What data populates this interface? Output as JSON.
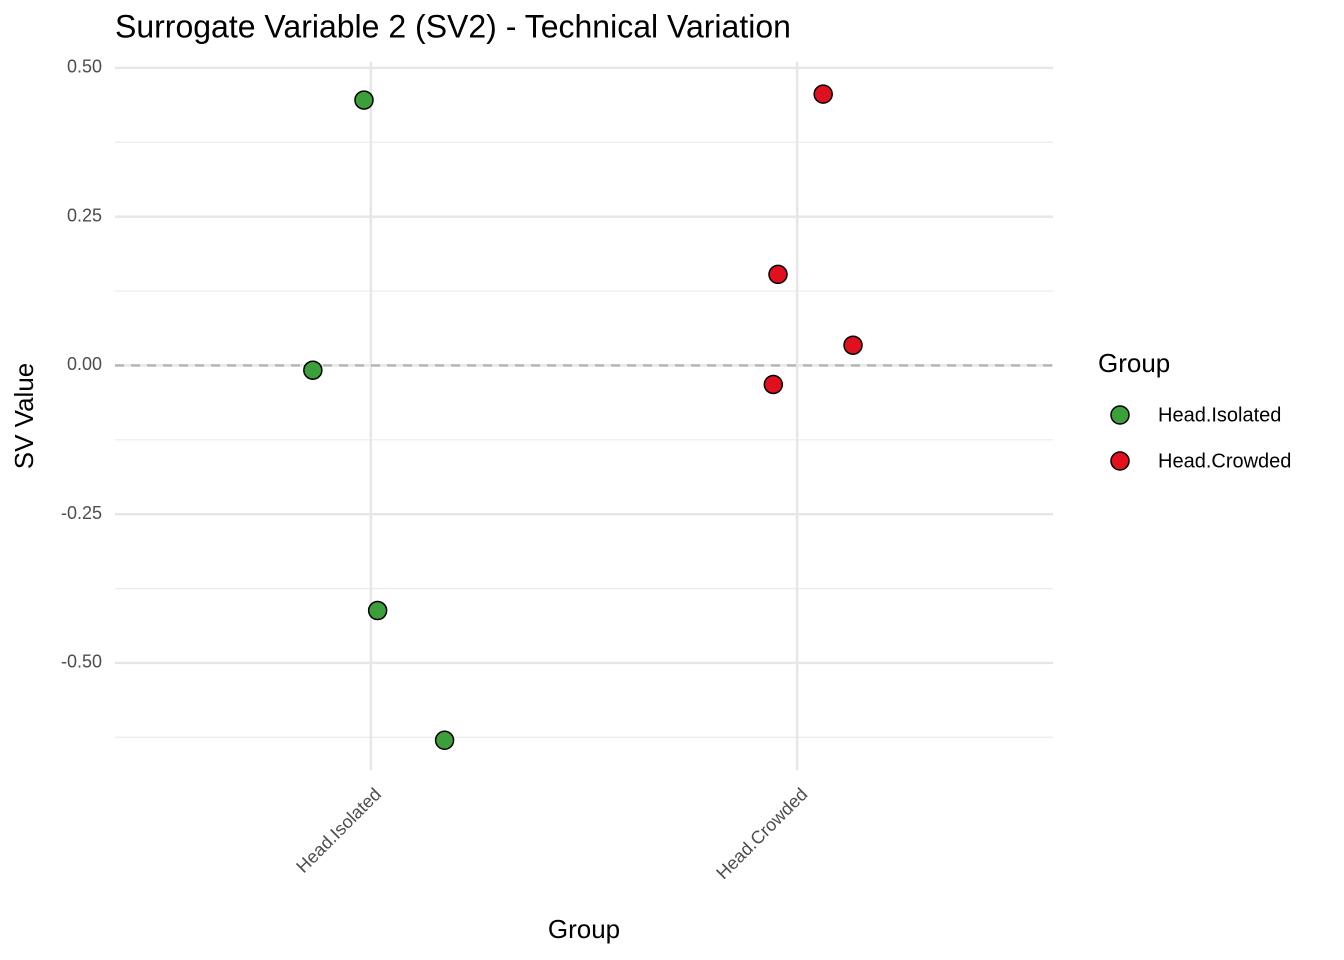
{
  "chart_data": {
    "type": "scatter",
    "title": "Surrogate Variable 2 (SV2) - Technical Variation",
    "x_label": "Group",
    "y_label": "SV Value",
    "legend_title": "Group",
    "xlim": [
      0.4,
      2.6
    ],
    "xticks": [
      {
        "value": 1,
        "label": "Head.Isolated"
      },
      {
        "value": 2,
        "label": "Head.Crowded"
      }
    ],
    "ylim": [
      -0.68,
      0.51
    ],
    "yticks": [
      {
        "value": -0.5,
        "label": "-0.50"
      },
      {
        "value": -0.25,
        "label": "-0.25"
      },
      {
        "value": 0,
        "label": "0.00"
      },
      {
        "value": 0.25,
        "label": "0.25"
      },
      {
        "value": 0.5,
        "label": "0.50"
      }
    ],
    "hline": 0,
    "grid": true,
    "series": [
      {
        "name": "Head.Isolated",
        "color": "#3c9f3a",
        "x": [
          0.984,
          0.864,
          1.016,
          1.173
        ],
        "values": [
          0.446,
          -0.008,
          -0.412,
          -0.63
        ]
      },
      {
        "name": "Head.Crowded",
        "color": "#e0101e",
        "x": [
          2.061,
          1.955,
          2.131,
          1.944
        ],
        "values": [
          0.456,
          0.153,
          0.034,
          -0.032
        ]
      }
    ]
  }
}
